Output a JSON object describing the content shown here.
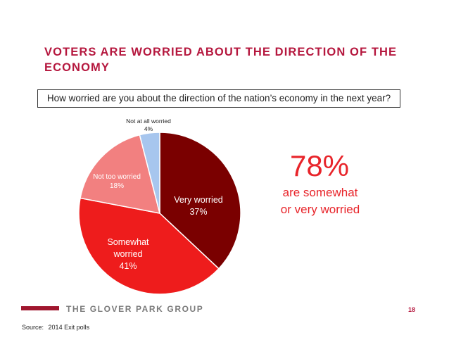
{
  "title_lines": [
    "VOTERS ARE WORRIED ABOUT THE DIRECTION OF THE",
    "ECONOMY"
  ],
  "question": "How worried are you about the direction of the nation’s economy in the next year?",
  "chart_data": {
    "type": "pie",
    "slices": [
      {
        "name": "Very worried",
        "value": 37,
        "color": "#7a0000",
        "label_lines": [
          "Very worried",
          "37%"
        ],
        "label_color": "#ffffff"
      },
      {
        "name": "Somewhat worried",
        "value": 41,
        "color": "#ee1c1c",
        "label_lines": [
          "Somewhat",
          "worried",
          "41%"
        ],
        "label_color": "#ffffff"
      },
      {
        "name": "Not too worried",
        "value": 18,
        "color": "#f28080",
        "label_lines": [
          "Not too worried",
          "18%"
        ],
        "label_color": "#ffffff"
      },
      {
        "name": "Not at all worried",
        "value": 4,
        "color": "#a7c6ee",
        "label_lines": [
          "Not at all worried",
          "4%"
        ],
        "label_color": "#222222"
      }
    ]
  },
  "callout": {
    "value": "78%",
    "lines": [
      "are somewhat",
      "or very worried"
    ]
  },
  "footer": {
    "brand": "THE GLOVER PARK GROUP",
    "page": "18",
    "source_label": "Source:",
    "source_value": "2014 Exit polls"
  }
}
